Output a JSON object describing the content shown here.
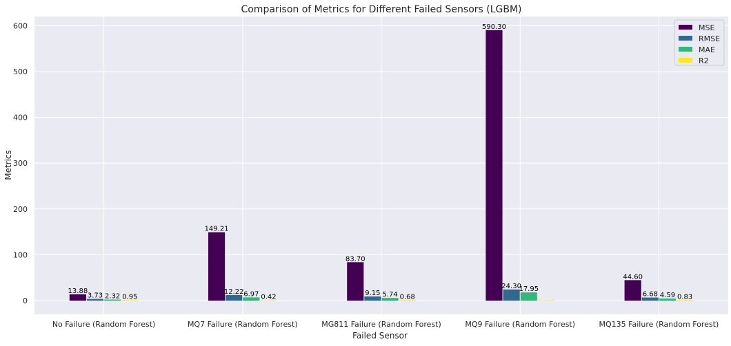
{
  "chart_data": {
    "type": "bar",
    "title": "Comparison of Metrics for Different Failed Sensors (LGBM)",
    "xlabel": "Failed Sensor",
    "ylabel": "Metrics",
    "ylim": [
      -30,
      620
    ],
    "yticks": [
      0,
      100,
      200,
      300,
      400,
      500,
      600
    ],
    "grid": true,
    "legend_position": "top-right",
    "categories": [
      "No Failure (Random Forest)",
      "MQ7 Failure (Random Forest)",
      "MG811 Failure (Random Forest)",
      "MQ9 Failure (Random Forest)",
      "MQ135 Failure (Random Forest)"
    ],
    "series": [
      {
        "name": "MSE",
        "color": "#440154",
        "values": [
          13.88,
          149.21,
          83.7,
          590.3,
          44.6
        ],
        "labels": [
          "13.88",
          "149.21",
          "83.70",
          "590.30",
          "44.60"
        ]
      },
      {
        "name": "RMSE",
        "color": "#31688e",
        "values": [
          3.73,
          12.22,
          9.15,
          24.3,
          6.68
        ],
        "labels": [
          "3.73",
          "12.22",
          "9.15",
          "24.30",
          "6.68"
        ]
      },
      {
        "name": "MAE",
        "color": "#35b779",
        "values": [
          2.32,
          6.97,
          5.74,
          17.95,
          4.59
        ],
        "labels": [
          "2.32",
          "6.97",
          "5.74",
          "17.95",
          "4.59"
        ]
      },
      {
        "name": "R2",
        "color": "#fde725",
        "values": [
          0.95,
          0.42,
          0.68,
          0.63,
          0.83
        ],
        "labels": [
          "0.95",
          "0.42",
          "0.68",
          "",
          "0.83"
        ]
      }
    ],
    "colors": {
      "plot_background": "#eaeaf2",
      "grid": "#ffffff",
      "label_text": "#000000",
      "axis_text": "#262626"
    }
  }
}
